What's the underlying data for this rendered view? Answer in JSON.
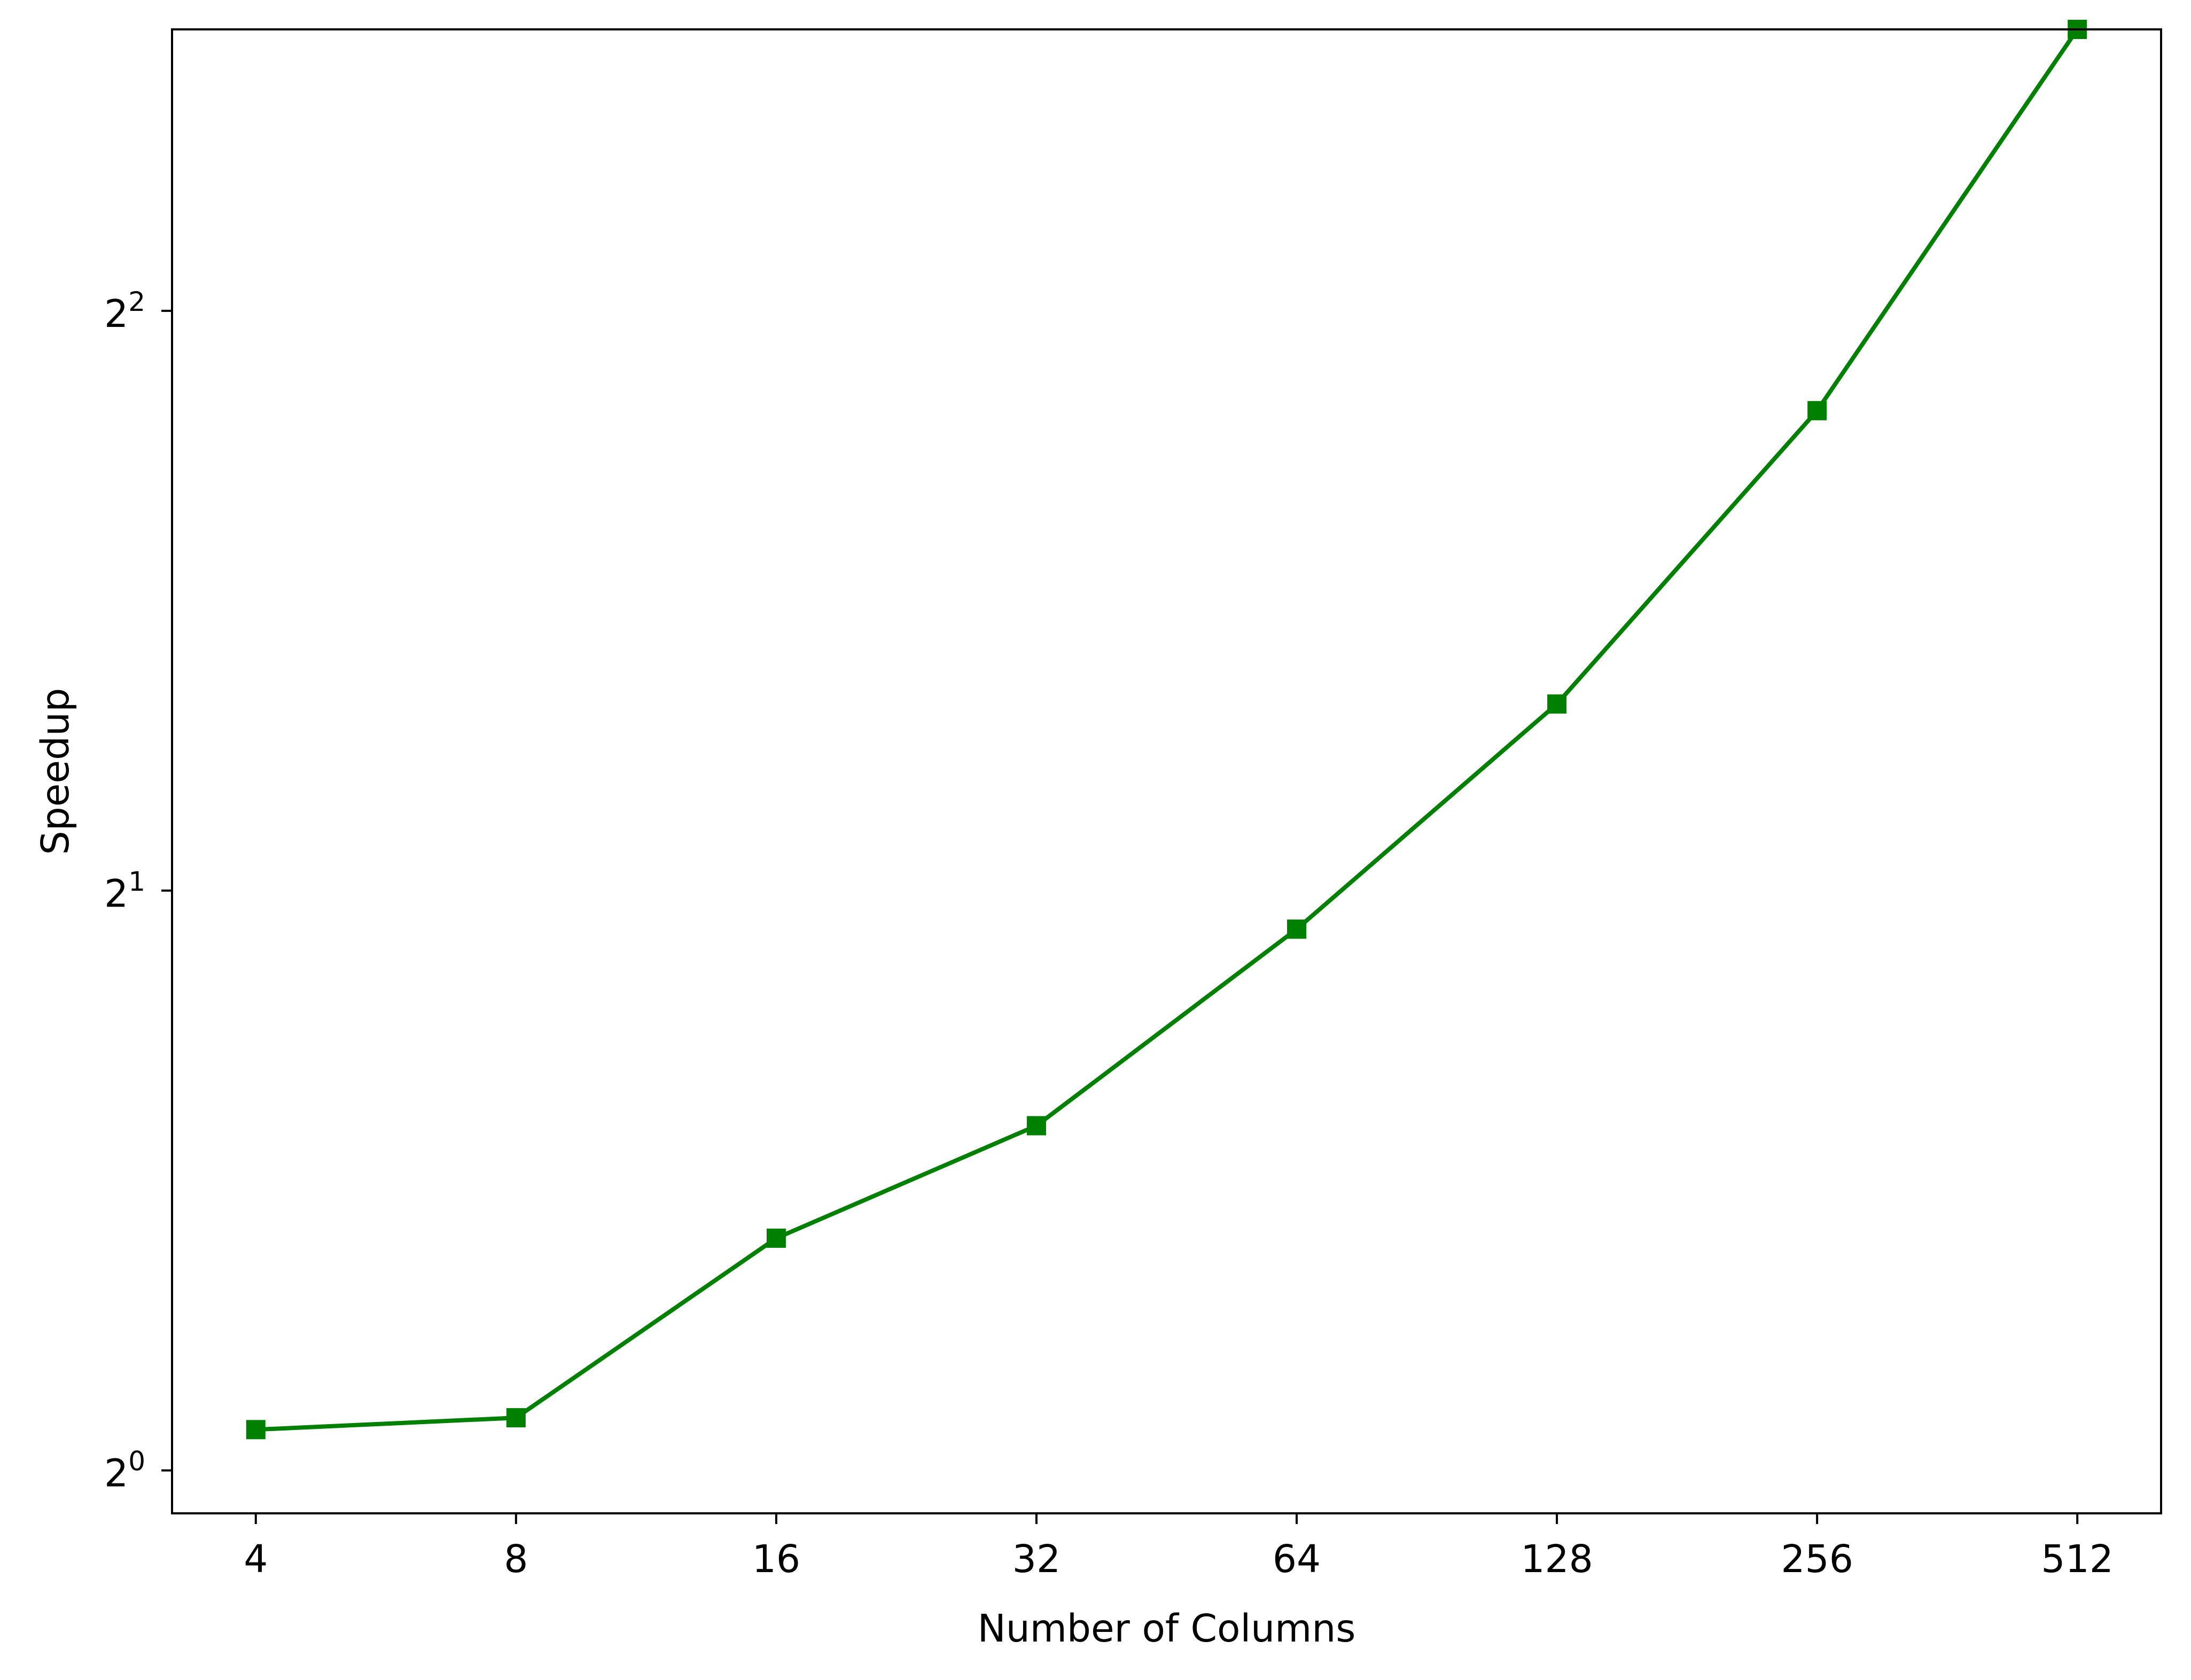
{
  "chart_data": {
    "type": "line",
    "title": "",
    "xlabel": "Number of Columns",
    "ylabel": "Speedup",
    "x_scale": "log2",
    "y_scale": "log2",
    "x": [
      4,
      8,
      16,
      32,
      64,
      128,
      256,
      512
    ],
    "x_tick_labels": [
      "4",
      "8",
      "16",
      "32",
      "64",
      "128",
      "256",
      "512"
    ],
    "y_ticks": [
      {
        "base": "2",
        "exponent": "0",
        "value": 1
      },
      {
        "base": "2",
        "exponent": "1",
        "value": 2
      },
      {
        "base": "2",
        "exponent": "2",
        "value": 4
      }
    ],
    "xlim": [
      3.2,
      640
    ],
    "ylim": [
      0.95,
      5.6
    ],
    "grid": false,
    "legend": "none",
    "series": [
      {
        "values": [
          1.05,
          1.065,
          1.32,
          1.51,
          1.91,
          2.5,
          3.55,
          5.6
        ],
        "color": "#008000",
        "marker": "square"
      }
    ]
  }
}
